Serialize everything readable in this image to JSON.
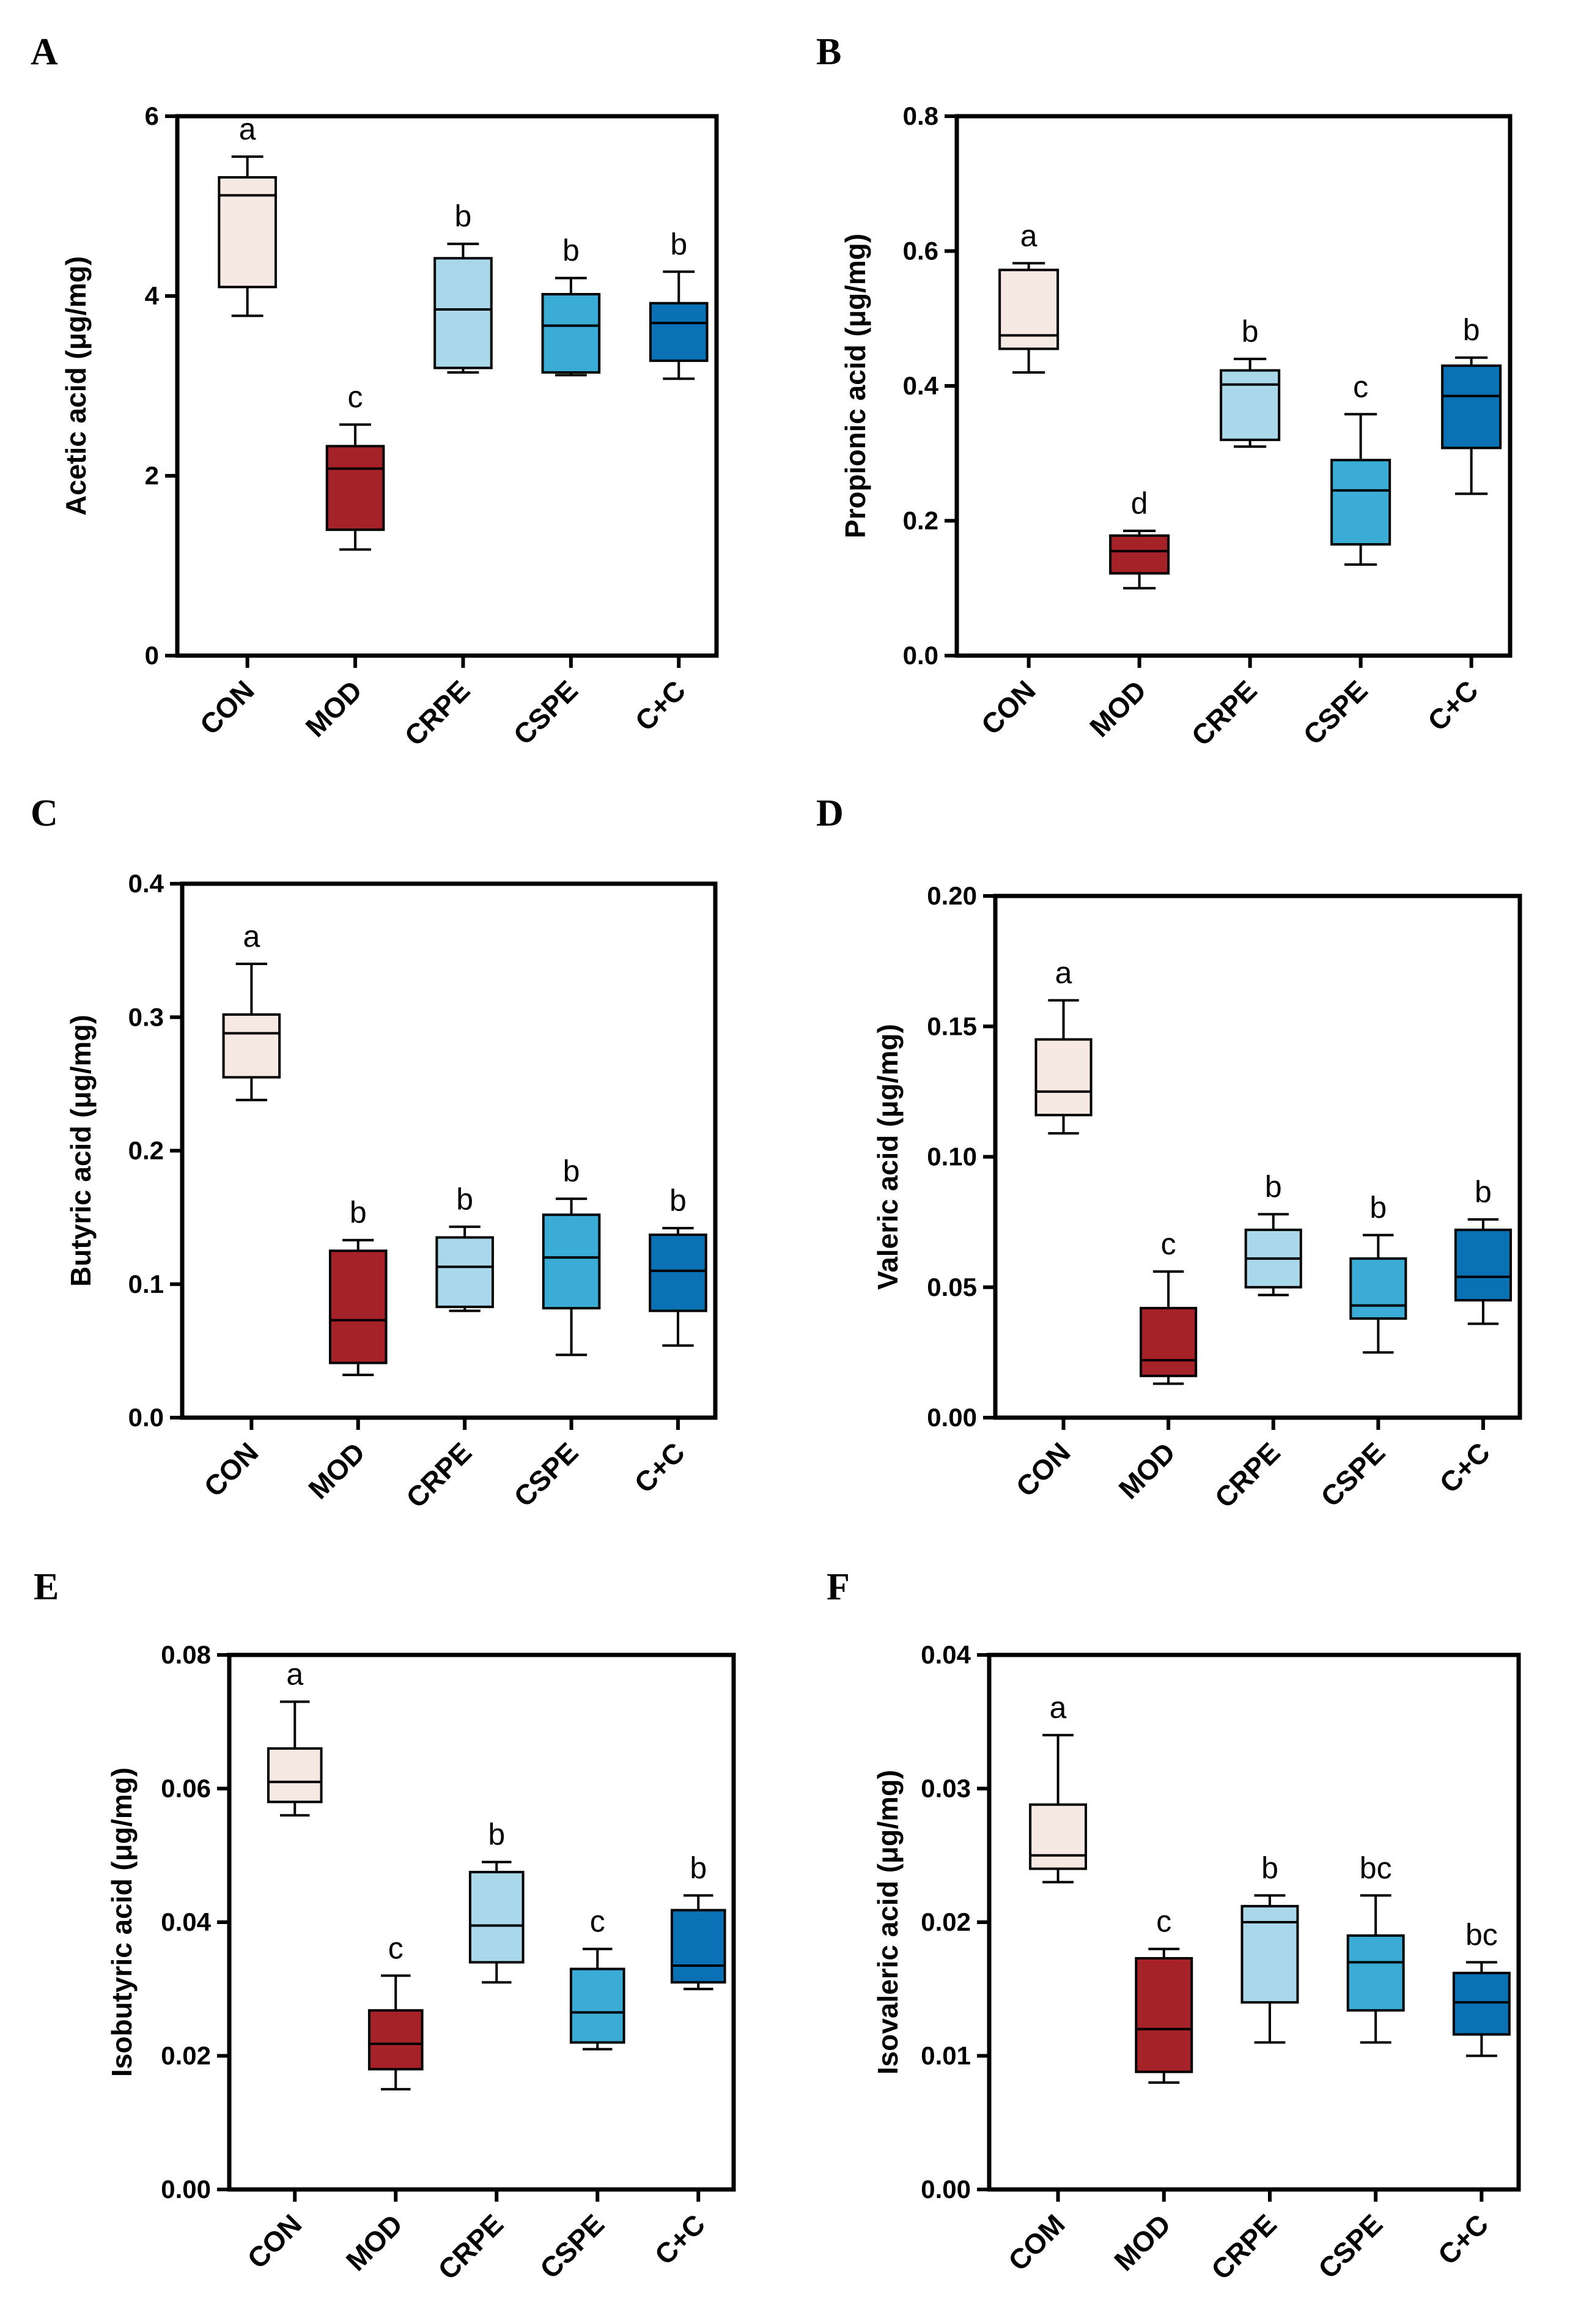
{
  "figure": {
    "panel_labels": [
      "A",
      "B",
      "C",
      "D",
      "E",
      "F"
    ]
  },
  "colors": {
    "CON": "#f6e8e3",
    "MOD": "#a52328",
    "CRPE": "#a8d8ea",
    "CSPE": "#3bacd6",
    "C+C": "#0a72b4",
    "stroke": "#000000"
  },
  "chart_data": [
    {
      "panel": "A",
      "type": "box",
      "ylabel": "Acetic acid (μg/mg)",
      "ylim": [
        0,
        6
      ],
      "yticks": [
        "0",
        "2",
        "4",
        "6"
      ],
      "ytick_values": [
        0,
        2,
        4,
        6
      ],
      "categories": [
        "CON",
        "MOD",
        "CRPE",
        "CSPE",
        "C+C"
      ],
      "boxes": [
        {
          "min": 3.78,
          "q1": 4.1,
          "median": 5.12,
          "q3": 5.32,
          "max": 5.55,
          "sig": "a"
        },
        {
          "min": 1.18,
          "q1": 1.4,
          "median": 2.08,
          "q3": 2.33,
          "max": 2.57,
          "sig": "c"
        },
        {
          "min": 3.15,
          "q1": 3.2,
          "median": 3.85,
          "q3": 4.42,
          "max": 4.58,
          "sig": "b"
        },
        {
          "min": 3.12,
          "q1": 3.15,
          "median": 3.67,
          "q3": 4.02,
          "max": 4.2,
          "sig": "b"
        },
        {
          "min": 3.08,
          "q1": 3.28,
          "median": 3.7,
          "q3": 3.92,
          "max": 4.27,
          "sig": "b"
        }
      ]
    },
    {
      "panel": "B",
      "type": "box",
      "ylabel": "Propionic acid (μg/mg)",
      "ylim": [
        0,
        0.8
      ],
      "yticks": [
        "0.0",
        "0.2",
        "0.4",
        "0.6",
        "0.8"
      ],
      "ytick_values": [
        0,
        0.2,
        0.4,
        0.6,
        0.8
      ],
      "categories": [
        "CON",
        "MOD",
        "CRPE",
        "CSPE",
        "C+C"
      ],
      "boxes": [
        {
          "min": 0.42,
          "q1": 0.455,
          "median": 0.475,
          "q3": 0.572,
          "max": 0.582,
          "sig": "a"
        },
        {
          "min": 0.1,
          "q1": 0.122,
          "median": 0.155,
          "q3": 0.178,
          "max": 0.185,
          "sig": "d"
        },
        {
          "min": 0.31,
          "q1": 0.32,
          "median": 0.402,
          "q3": 0.423,
          "max": 0.44,
          "sig": "b"
        },
        {
          "min": 0.135,
          "q1": 0.165,
          "median": 0.245,
          "q3": 0.29,
          "max": 0.358,
          "sig": "c"
        },
        {
          "min": 0.24,
          "q1": 0.308,
          "median": 0.385,
          "q3": 0.43,
          "max": 0.442,
          "sig": "b"
        }
      ]
    },
    {
      "panel": "C",
      "type": "box",
      "ylabel": "Butyric acid (μg/mg)",
      "ylim": [
        0,
        0.4
      ],
      "yticks": [
        "0.0",
        "0.1",
        "0.2",
        "0.3",
        "0.4"
      ],
      "ytick_values": [
        0,
        0.1,
        0.2,
        0.3,
        0.4
      ],
      "categories": [
        "CON",
        "MOD",
        "CRPE",
        "CSPE",
        "C+C"
      ],
      "boxes": [
        {
          "min": 0.238,
          "q1": 0.255,
          "median": 0.288,
          "q3": 0.302,
          "max": 0.34,
          "sig": "a"
        },
        {
          "min": 0.032,
          "q1": 0.041,
          "median": 0.073,
          "q3": 0.125,
          "max": 0.133,
          "sig": "b"
        },
        {
          "min": 0.08,
          "q1": 0.083,
          "median": 0.113,
          "q3": 0.135,
          "max": 0.143,
          "sig": "b"
        },
        {
          "min": 0.047,
          "q1": 0.082,
          "median": 0.12,
          "q3": 0.152,
          "max": 0.164,
          "sig": "b"
        },
        {
          "min": 0.054,
          "q1": 0.08,
          "median": 0.11,
          "q3": 0.137,
          "max": 0.142,
          "sig": "b"
        }
      ]
    },
    {
      "panel": "D",
      "type": "box",
      "ylabel": "Valeric acid (μg/mg)",
      "ylim": [
        0,
        0.2
      ],
      "yticks": [
        "0.00",
        "0.05",
        "0.10",
        "0.15",
        "0.20"
      ],
      "ytick_values": [
        0,
        0.05,
        0.1,
        0.15,
        0.2
      ],
      "categories": [
        "CON",
        "MOD",
        "CRPE",
        "CSPE",
        "C+C"
      ],
      "boxes": [
        {
          "min": 0.109,
          "q1": 0.116,
          "median": 0.125,
          "q3": 0.145,
          "max": 0.16,
          "sig": "a"
        },
        {
          "min": 0.013,
          "q1": 0.016,
          "median": 0.022,
          "q3": 0.042,
          "max": 0.056,
          "sig": "c"
        },
        {
          "min": 0.047,
          "q1": 0.05,
          "median": 0.061,
          "q3": 0.072,
          "max": 0.078,
          "sig": "b"
        },
        {
          "min": 0.025,
          "q1": 0.038,
          "median": 0.043,
          "q3": 0.061,
          "max": 0.07,
          "sig": "b"
        },
        {
          "min": 0.036,
          "q1": 0.045,
          "median": 0.054,
          "q3": 0.072,
          "max": 0.076,
          "sig": "b"
        }
      ]
    },
    {
      "panel": "E",
      "type": "box",
      "ylabel": "Isobutyric acid (μg/mg)",
      "ylim": [
        0,
        0.08
      ],
      "yticks": [
        "0.00",
        "0.02",
        "0.04",
        "0.06",
        "0.08"
      ],
      "ytick_values": [
        0,
        0.02,
        0.04,
        0.06,
        0.08
      ],
      "categories": [
        "CON",
        "MOD",
        "CRPE",
        "CSPE",
        "C+C"
      ],
      "boxes": [
        {
          "min": 0.056,
          "q1": 0.058,
          "median": 0.061,
          "q3": 0.066,
          "max": 0.073,
          "sig": "a"
        },
        {
          "min": 0.015,
          "q1": 0.018,
          "median": 0.0218,
          "q3": 0.0268,
          "max": 0.032,
          "sig": "c"
        },
        {
          "min": 0.031,
          "q1": 0.034,
          "median": 0.0395,
          "q3": 0.0475,
          "max": 0.049,
          "sig": "b"
        },
        {
          "min": 0.021,
          "q1": 0.022,
          "median": 0.0265,
          "q3": 0.033,
          "max": 0.036,
          "sig": "c"
        },
        {
          "min": 0.03,
          "q1": 0.031,
          "median": 0.0335,
          "q3": 0.0418,
          "max": 0.044,
          "sig": "b"
        }
      ]
    },
    {
      "panel": "F",
      "type": "box",
      "ylabel": "Isovaleric acid (μg/mg)",
      "ylim": [
        0,
        0.04
      ],
      "yticks": [
        "0.00",
        "0.01",
        "0.02",
        "0.03",
        "0.04"
      ],
      "ytick_values": [
        0,
        0.01,
        0.02,
        0.03,
        0.04
      ],
      "categories": [
        "COM",
        "MOD",
        "CRPE",
        "CSPE",
        "C+C"
      ],
      "color_keys": [
        "CON",
        "MOD",
        "CRPE",
        "CSPE",
        "C+C"
      ],
      "boxes": [
        {
          "min": 0.023,
          "q1": 0.024,
          "median": 0.025,
          "q3": 0.0288,
          "max": 0.034,
          "sig": "a"
        },
        {
          "min": 0.008,
          "q1": 0.0088,
          "median": 0.012,
          "q3": 0.0173,
          "max": 0.018,
          "sig": "c"
        },
        {
          "min": 0.011,
          "q1": 0.014,
          "median": 0.02,
          "q3": 0.0212,
          "max": 0.022,
          "sig": "b"
        },
        {
          "min": 0.011,
          "q1": 0.0134,
          "median": 0.017,
          "q3": 0.019,
          "max": 0.022,
          "sig": "bc"
        },
        {
          "min": 0.01,
          "q1": 0.0116,
          "median": 0.014,
          "q3": 0.0162,
          "max": 0.017,
          "sig": "bc"
        }
      ]
    }
  ]
}
